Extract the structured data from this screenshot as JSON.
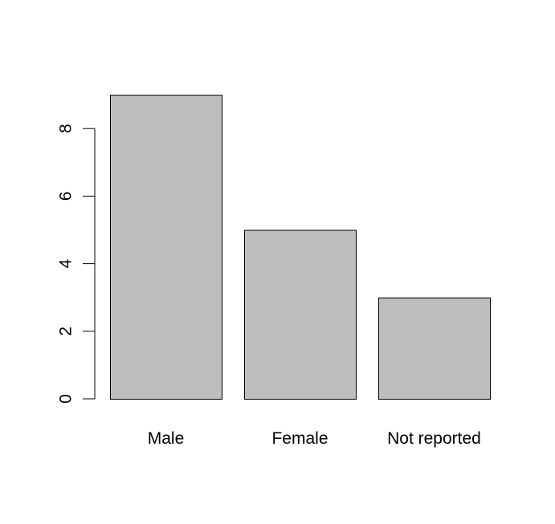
{
  "chart_data": {
    "type": "bar",
    "title": "",
    "xlabel": "",
    "ylabel": "",
    "categories": [
      "Male",
      "Female",
      "Not reported"
    ],
    "values": [
      9,
      5,
      3
    ],
    "ylim": [
      0,
      9
    ],
    "yticks": [
      "0",
      "2",
      "4",
      "6",
      "8"
    ],
    "bar_color": "#bebebe",
    "bar_border_color": "#000000",
    "grid": false,
    "legend": "none"
  }
}
